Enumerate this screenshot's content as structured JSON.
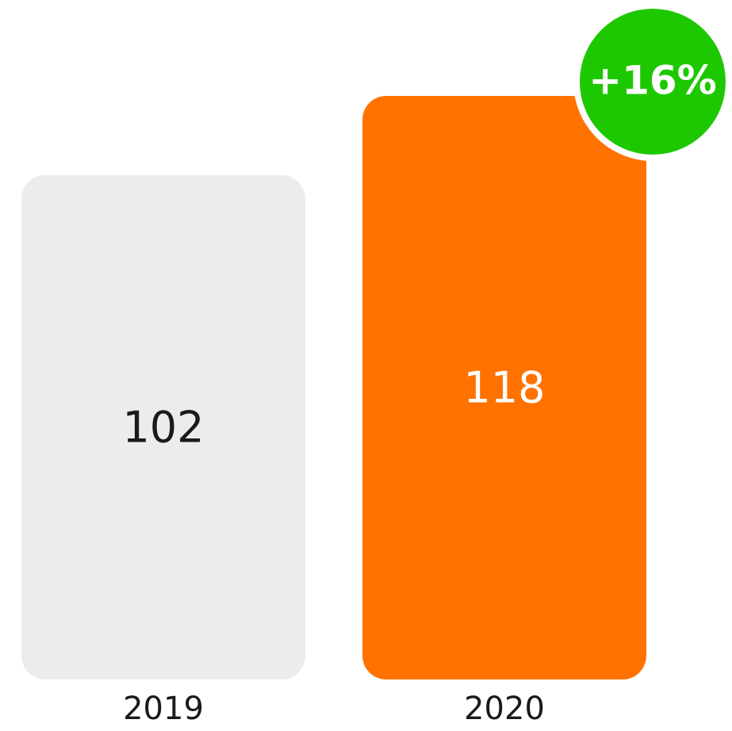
{
  "chart_data": {
    "type": "bar",
    "categories": [
      "2019",
      "2020"
    ],
    "values": [
      102,
      118
    ],
    "colors": [
      "#ececec",
      "#ff7200"
    ],
    "annotation": "+16%",
    "annotation_color": "#1ec800"
  }
}
